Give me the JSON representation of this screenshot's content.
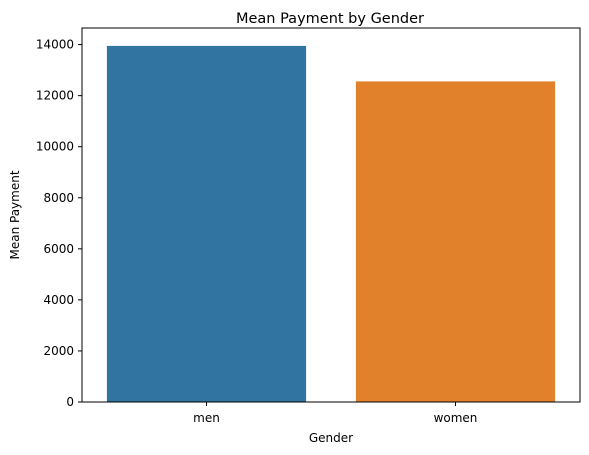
{
  "chart_data": {
    "type": "bar",
    "title": "Mean Payment by Gender",
    "xlabel": "Gender",
    "ylabel": "Mean Payment",
    "categories": [
      "men",
      "women"
    ],
    "values": [
      13950,
      12560
    ],
    "colors": [
      "#3274a1",
      "#e1812c"
    ],
    "ylim": [
      0,
      14650
    ],
    "yticks": [
      0,
      2000,
      4000,
      6000,
      8000,
      10000,
      12000,
      14000
    ],
    "grid": false,
    "legend": "none"
  }
}
